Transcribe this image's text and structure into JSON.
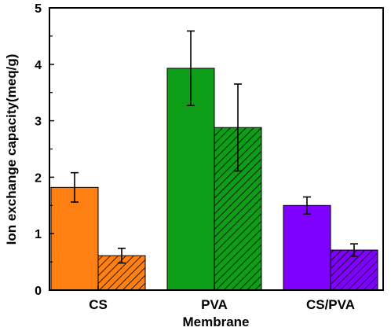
{
  "chart_data": {
    "type": "bar",
    "categories": [
      "CS",
      "PVA",
      "CS/PVA"
    ],
    "series": [
      {
        "pattern": "solid",
        "values": [
          1.82,
          3.93,
          1.5
        ],
        "errors": [
          0.26,
          0.66,
          0.15
        ],
        "colors": [
          "#FF8012",
          "#0E9D17",
          "#8000FF"
        ]
      },
      {
        "pattern": "hatched",
        "values": [
          0.61,
          2.88,
          0.71
        ],
        "errors": [
          0.13,
          0.77,
          0.11
        ],
        "colors": [
          "#FF8012",
          "#0E9D17",
          "#8000FF"
        ]
      }
    ],
    "title": "",
    "xlabel": "Membrane",
    "ylabel": "Ion exchange capacity(meq/g)",
    "ylim": [
      0,
      5
    ],
    "yticks": [
      "0",
      "1",
      "2",
      "3",
      "4",
      "5"
    ],
    "grid": false,
    "legend": "none"
  }
}
